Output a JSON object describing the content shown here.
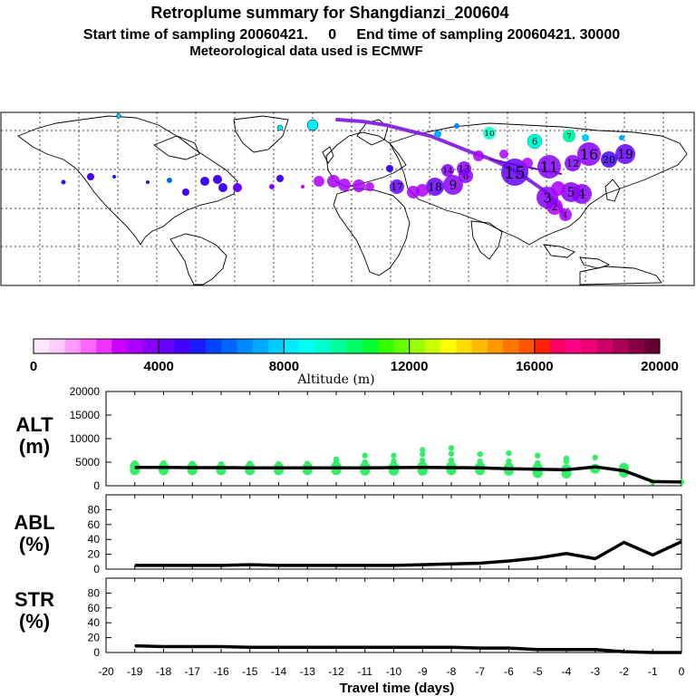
{
  "header": {
    "title": "Retroplume summary for Shangdianzi_200604",
    "line2": "Start time of sampling 20060421.     0     End time of sampling 20060421. 30000",
    "line3": "Meteorological data used is ECMWF"
  },
  "colorbar": {
    "label": "Altitude (m)",
    "ticks": [
      "0",
      "4000",
      "8000",
      "12000",
      "16000",
      "20000"
    ],
    "range": [
      0,
      20000
    ],
    "colors": [
      "#ffe6ff",
      "#ffccff",
      "#ff99ff",
      "#ff66ff",
      "#ee33ff",
      "#cc00ff",
      "#aa00ff",
      "#8800ff",
      "#6600ff",
      "#4400ff",
      "#1a1aff",
      "#0044ff",
      "#0066ff",
      "#0088ff",
      "#00aaff",
      "#00ccff",
      "#00eeff",
      "#00ffee",
      "#00ffcc",
      "#00ff99",
      "#00ff66",
      "#00ff33",
      "#33ff00",
      "#66ff00",
      "#99ff00",
      "#ccff00",
      "#ffff00",
      "#ffdd00",
      "#ffbb00",
      "#ff9900",
      "#ff7700",
      "#ff5500",
      "#ff2200",
      "#ff0066",
      "#ff0088",
      "#ee0077",
      "#cc0066",
      "#aa0055",
      "#880044",
      "#660033"
    ]
  },
  "map": {
    "source_label": "1",
    "path_color": "#8a2be2",
    "clusters": [
      {
        "label": "1",
        "alt": 3400
      },
      {
        "label": "2",
        "alt": 3300
      },
      {
        "label": "3",
        "alt": 3500
      },
      {
        "label": "4",
        "alt": 3600
      },
      {
        "label": "5",
        "alt": 3700
      },
      {
        "label": "6",
        "alt": 9000
      },
      {
        "label": "7",
        "alt": 9500
      },
      {
        "label": "8",
        "alt": 3800
      },
      {
        "label": "9",
        "alt": 3900
      },
      {
        "label": "10",
        "alt": 9200
      },
      {
        "label": "11",
        "alt": 3500
      },
      {
        "label": "12",
        "alt": 3600
      },
      {
        "label": "13",
        "alt": 3700
      },
      {
        "label": "14",
        "alt": 3800
      },
      {
        "label": "15",
        "alt": 4000
      },
      {
        "label": "16",
        "alt": 3900
      },
      {
        "label": "17",
        "alt": 4100
      },
      {
        "label": "18",
        "alt": 4200
      },
      {
        "label": "19",
        "alt": 4300
      },
      {
        "label": "20",
        "alt": 4500
      }
    ]
  },
  "panels": {
    "alt": {
      "label_line1": "ALT",
      "label_line2": "(m)"
    },
    "abl": {
      "label_line1": "ABL",
      "label_line2": "(%)"
    },
    "str": {
      "label_line1": "STR",
      "label_line2": "(%)"
    }
  },
  "chart_data": [
    {
      "type": "line",
      "title": "ALT (m)",
      "xlabel": "Travel time (days)",
      "ylabel": "ALT (m)",
      "xlim": [
        -20,
        0
      ],
      "ylim": [
        0,
        20000
      ],
      "yticks": [
        0,
        5000,
        10000,
        15000,
        20000
      ],
      "x": [
        -19,
        -18,
        -17,
        -16,
        -15,
        -14,
        -13,
        -12,
        -11,
        -10,
        -9,
        -8,
        -7,
        -6,
        -5,
        -4,
        -3,
        -2,
        -1,
        0
      ],
      "series": [
        {
          "name": "mean altitude",
          "color": "#000000",
          "values": [
            3900,
            3900,
            3850,
            3850,
            3800,
            3800,
            3800,
            3800,
            3800,
            3850,
            3900,
            3850,
            3800,
            3600,
            3500,
            3400,
            4000,
            3200,
            900,
            800
          ]
        }
      ],
      "scatter": {
        "name": "cluster altitudes",
        "color": "#33ee66",
        "points": [
          {
            "x": -19,
            "y": 3300
          },
          {
            "x": -19,
            "y": 4100
          },
          {
            "x": -19,
            "y": 4800
          },
          {
            "x": -18,
            "y": 3300
          },
          {
            "x": -18,
            "y": 4000
          },
          {
            "x": -18,
            "y": 4800
          },
          {
            "x": -17,
            "y": 3300
          },
          {
            "x": -17,
            "y": 4000
          },
          {
            "x": -17,
            "y": 4700
          },
          {
            "x": -16,
            "y": 3300
          },
          {
            "x": -16,
            "y": 3700
          },
          {
            "x": -16,
            "y": 4600
          },
          {
            "x": -15,
            "y": 3300
          },
          {
            "x": -15,
            "y": 3900
          },
          {
            "x": -15,
            "y": 4700
          },
          {
            "x": -14,
            "y": 3300
          },
          {
            "x": -14,
            "y": 3900
          },
          {
            "x": -14,
            "y": 4600
          },
          {
            "x": -13,
            "y": 3300
          },
          {
            "x": -13,
            "y": 3900
          },
          {
            "x": -13,
            "y": 4700
          },
          {
            "x": -12,
            "y": 3300
          },
          {
            "x": -12,
            "y": 4100
          },
          {
            "x": -12,
            "y": 5000
          },
          {
            "x": -12,
            "y": 5600
          },
          {
            "x": -11,
            "y": 3200
          },
          {
            "x": -11,
            "y": 4000
          },
          {
            "x": -11,
            "y": 5000
          },
          {
            "x": -11,
            "y": 6400
          },
          {
            "x": -10,
            "y": 3200
          },
          {
            "x": -10,
            "y": 4000
          },
          {
            "x": -10,
            "y": 5200
          },
          {
            "x": -10,
            "y": 6400
          },
          {
            "x": -9,
            "y": 3200
          },
          {
            "x": -9,
            "y": 4100
          },
          {
            "x": -9,
            "y": 5400
          },
          {
            "x": -9,
            "y": 6700
          },
          {
            "x": -9,
            "y": 7600
          },
          {
            "x": -8,
            "y": 3300
          },
          {
            "x": -8,
            "y": 4100
          },
          {
            "x": -8,
            "y": 5400
          },
          {
            "x": -8,
            "y": 6800
          },
          {
            "x": -8,
            "y": 8000
          },
          {
            "x": -7,
            "y": 3300
          },
          {
            "x": -7,
            "y": 4000
          },
          {
            "x": -7,
            "y": 5200
          },
          {
            "x": -7,
            "y": 6700
          },
          {
            "x": -6,
            "y": 3200
          },
          {
            "x": -6,
            "y": 3900
          },
          {
            "x": -6,
            "y": 5200
          },
          {
            "x": -6,
            "y": 6900
          },
          {
            "x": -5,
            "y": 2700
          },
          {
            "x": -5,
            "y": 3800
          },
          {
            "x": -5,
            "y": 4800
          },
          {
            "x": -5,
            "y": 6400
          },
          {
            "x": -4,
            "y": 2600
          },
          {
            "x": -4,
            "y": 3500
          },
          {
            "x": -4,
            "y": 5200
          },
          {
            "x": -4,
            "y": 5800
          },
          {
            "x": -3,
            "y": 3600
          },
          {
            "x": -3,
            "y": 6000
          },
          {
            "x": -2,
            "y": 2800
          },
          {
            "x": -2,
            "y": 3800
          },
          {
            "x": -1,
            "y": 800
          },
          {
            "x": 0,
            "y": 800
          }
        ]
      }
    },
    {
      "type": "line",
      "title": "ABL (%)",
      "xlabel": "Travel time (days)",
      "ylabel": "ABL (%)",
      "xlim": [
        -20,
        0
      ],
      "ylim": [
        0,
        100
      ],
      "yticks": [
        0,
        20,
        40,
        60,
        80
      ],
      "x": [
        -19,
        -18,
        -17,
        -16,
        -15,
        -14,
        -13,
        -12,
        -11,
        -10,
        -9,
        -8,
        -7,
        -6,
        -5,
        -4,
        -3,
        -2,
        -1,
        0
      ],
      "series": [
        {
          "name": "ABL fraction",
          "color": "#000000",
          "values": [
            5,
            5,
            5,
            5,
            6,
            5,
            5,
            5,
            5,
            5,
            6,
            7,
            8,
            11,
            15,
            21,
            14,
            36,
            19,
            37
          ]
        }
      ]
    },
    {
      "type": "line",
      "title": "STR (%)",
      "xlabel": "Travel time (days)",
      "ylabel": "STR (%)",
      "xlim": [
        -20,
        0
      ],
      "ylim": [
        0,
        100
      ],
      "yticks": [
        0,
        20,
        40,
        60,
        80
      ],
      "x": [
        -19,
        -18,
        -17,
        -16,
        -15,
        -14,
        -13,
        -12,
        -11,
        -10,
        -9,
        -8,
        -7,
        -6,
        -5,
        -4,
        -3,
        -2,
        -1,
        0
      ],
      "series": [
        {
          "name": "STR fraction",
          "color": "#000000",
          "values": [
            9,
            8,
            8,
            8,
            7,
            7,
            7,
            7,
            7,
            7,
            7,
            7,
            6,
            6,
            4,
            4,
            4,
            1,
            0,
            0
          ]
        }
      ]
    }
  ],
  "xaxis": {
    "label": "Travel time (days)",
    "ticks": [
      "-20",
      "-19",
      "-18",
      "-17",
      "-16",
      "-15",
      "-14",
      "-13",
      "-12",
      "-11",
      "-10",
      "-9",
      "-8",
      "-7",
      "-6",
      "-5",
      "-4",
      "-3",
      "-2",
      "-1",
      "0"
    ]
  }
}
